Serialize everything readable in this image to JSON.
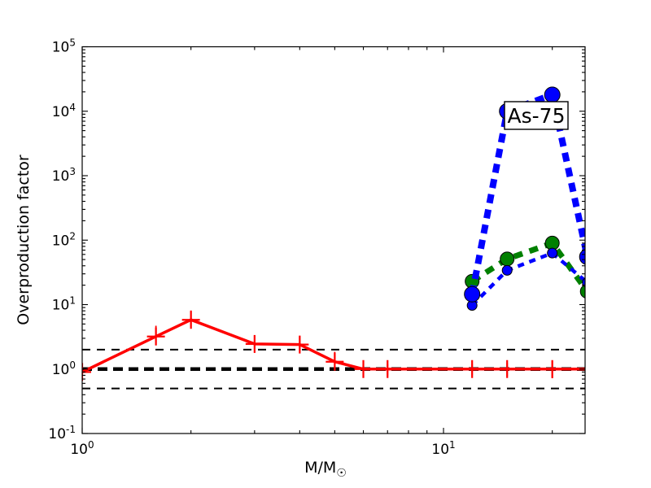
{
  "figure": {
    "background": "#ffffff"
  },
  "chart_data": {
    "type": "line",
    "title": "",
    "xlabel": "M/M☉",
    "xlabel_parts": {
      "main": "M/M",
      "subscript": "☉"
    },
    "ylabel": "Overproduction factor",
    "xscale": "log",
    "yscale": "log",
    "xlim": [
      1,
      24.65
    ],
    "ylim": [
      0.1,
      100000
    ],
    "grid": false,
    "legend": null,
    "tick_label_base": "10",
    "x_tick_values": [
      1,
      10
    ],
    "x_tick_exponents": [
      "0",
      "1"
    ],
    "y_tick_values": [
      0.1,
      1,
      10,
      100,
      1000,
      10000,
      100000
    ],
    "y_tick_exponents": [
      "-1",
      "0",
      "1",
      "2",
      "3",
      "4",
      "5"
    ],
    "annotation": {
      "text": "As-75"
    },
    "reference_lines": [
      {
        "y": 2,
        "color": "#000000",
        "dash": [
          10,
          8
        ],
        "line_width": 2
      },
      {
        "y": 0.5,
        "color": "#000000",
        "dash": [
          10,
          8
        ],
        "line_width": 2
      },
      {
        "y": 1,
        "color": "#000000",
        "dash": [
          12,
          7
        ],
        "line_width": 4.5
      }
    ],
    "series": [
      {
        "name": "low-mass-red-errorbar",
        "color": "#ff0000",
        "line_width": 3.5,
        "dash": null,
        "marker": "plus",
        "marker_size": 11,
        "points": [
          [
            1,
            0.9
          ],
          [
            1.6,
            3.2
          ],
          [
            2,
            5.8
          ],
          [
            3,
            2.45
          ],
          [
            4,
            2.4
          ],
          [
            5,
            1.3
          ],
          [
            6,
            1.0
          ],
          [
            7,
            1.0
          ],
          [
            12,
            1.0
          ],
          [
            15,
            1.0
          ],
          [
            20,
            1.0
          ],
          [
            25,
            1.0
          ]
        ],
        "errors": [
          [
            0.8,
            1.05
          ],
          [
            2.6,
            4.7
          ],
          [
            4.5,
            8.1
          ],
          [
            2.05,
            3.3
          ],
          [
            2.0,
            3.2
          ],
          [
            1.15,
            1.85
          ],
          [
            0.78,
            1.25
          ],
          [
            0.8,
            1.2
          ],
          [
            0.8,
            1.2
          ],
          [
            0.78,
            1.25
          ],
          [
            0.72,
            1.35
          ],
          [
            0.8,
            1.2
          ]
        ]
      },
      {
        "name": "massive-green-thick-dashed",
        "color": "#008000",
        "line_width": 7,
        "dash": [
          11,
          9
        ],
        "marker": "circle",
        "marker_size": 8.5,
        "points": [
          [
            12,
            23
          ],
          [
            15,
            51
          ],
          [
            20,
            90
          ],
          [
            25,
            16
          ]
        ]
      },
      {
        "name": "massive-blue-thin-dashed",
        "color": "#0000ff",
        "line_width": 4.5,
        "dash": [
          8,
          7
        ],
        "marker": "circle",
        "marker_size": 6,
        "points": [
          [
            12,
            9.7
          ],
          [
            15,
            34
          ],
          [
            20,
            63
          ],
          [
            25,
            22
          ]
        ]
      },
      {
        "name": "massive-blue-thick-dashed",
        "color": "#0000ff",
        "line_width": 8,
        "dash": [
          11,
          8
        ],
        "marker": "circle",
        "marker_size": 9.5,
        "points": [
          [
            12,
            14.5
          ],
          [
            15,
            10000
          ],
          [
            20,
            18000
          ],
          [
            25,
            55
          ]
        ]
      }
    ]
  }
}
